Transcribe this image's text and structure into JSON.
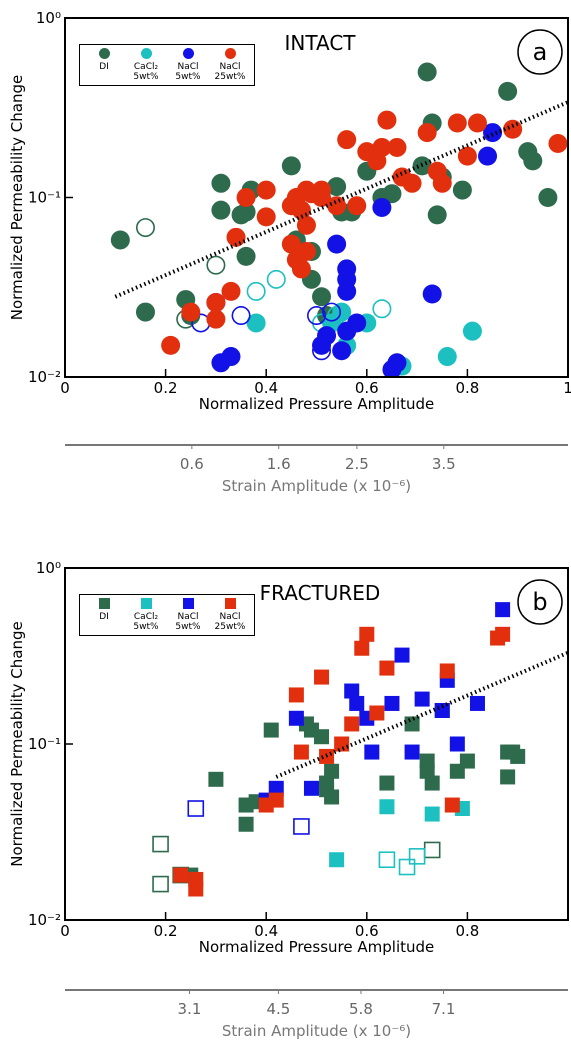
{
  "chart_data": [
    {
      "type": "scatter",
      "title": "INTACT",
      "panel_label": "a",
      "marker": "circle",
      "xlabel": "Normalized Pressure Amplitude",
      "ylabel": "Normalized Permeability Change",
      "x2label": "Strain Amplitude (x 10⁻⁶)",
      "legend": "upper left",
      "log_y": true,
      "xlim": [
        0,
        1
      ],
      "xticks": [
        0,
        0.2,
        0.4,
        0.6,
        0.8,
        1
      ],
      "ylim": [
        0.01,
        1
      ],
      "yticks": [
        {
          "value": 1,
          "label": "10⁰"
        },
        {
          "value": 0.1,
          "label": "10⁻¹"
        },
        {
          "value": 0.01,
          "label": "10⁻²"
        }
      ],
      "x2lim": [
        -0.86,
        4.93
      ],
      "x2ticks": [
        0.6,
        1.6,
        2.5,
        3.5
      ],
      "trend": {
        "x": [
          0.1,
          1
        ],
        "values": [
          0.028,
          0.34
        ]
      },
      "series": [
        {
          "name": "DI",
          "color": "#2e6a4c",
          "x": [
            0.11,
            0.16,
            0.24,
            0.25,
            0.31,
            0.31,
            0.35,
            0.36,
            0.37,
            0.36,
            0.45,
            0.46,
            0.49,
            0.49,
            0.51,
            0.52,
            0.54,
            0.55,
            0.57,
            0.6,
            0.63,
            0.65,
            0.71,
            0.72,
            0.73,
            0.74,
            0.75,
            0.79,
            0.88,
            0.92,
            0.93,
            0.96,
            0.16,
            0.24,
            0.3
          ],
          "values": [
            0.058,
            0.023,
            0.027,
            0.022,
            0.085,
            0.12,
            0.08,
            0.083,
            0.11,
            0.047,
            0.15,
            0.058,
            0.05,
            0.035,
            0.028,
            0.022,
            0.115,
            0.083,
            0.083,
            0.14,
            0.1,
            0.105,
            0.15,
            0.5,
            0.26,
            0.08,
            0.13,
            0.11,
            0.39,
            0.18,
            0.16,
            0.1,
            0.068,
            0.021,
            0.042
          ],
          "filled": [
            true,
            true,
            true,
            true,
            true,
            true,
            true,
            true,
            true,
            true,
            true,
            true,
            true,
            true,
            true,
            true,
            true,
            true,
            true,
            true,
            true,
            true,
            true,
            true,
            true,
            true,
            true,
            true,
            true,
            true,
            true,
            true,
            false,
            false,
            false
          ]
        },
        {
          "name": "CaCl₂ 5wt%",
          "color": "#1cc0c0",
          "x": [
            0.38,
            0.53,
            0.55,
            0.6,
            0.56,
            0.67,
            0.76,
            0.81,
            0.38,
            0.42,
            0.51,
            0.54,
            0.63
          ],
          "values": [
            0.02,
            0.02,
            0.023,
            0.02,
            0.015,
            0.0115,
            0.013,
            0.018,
            0.03,
            0.035,
            0.02,
            0.022,
            0.024
          ],
          "filled": [
            true,
            true,
            true,
            true,
            true,
            true,
            true,
            true,
            false,
            false,
            false,
            false,
            false
          ]
        },
        {
          "name": "NaCl 5wt%",
          "color": "#1212e6",
          "x": [
            0.31,
            0.33,
            0.52,
            0.55,
            0.54,
            0.56,
            0.56,
            0.56,
            0.58,
            0.63,
            0.65,
            0.66,
            0.73,
            0.84,
            0.85,
            0.51,
            0.56,
            0.27,
            0.3,
            0.35,
            0.51,
            0.53,
            0.5
          ],
          "values": [
            0.012,
            0.013,
            0.017,
            0.014,
            0.055,
            0.04,
            0.035,
            0.03,
            0.02,
            0.088,
            0.011,
            0.012,
            0.029,
            0.17,
            0.23,
            0.015,
            0.018,
            0.02,
            0.026,
            0.022,
            0.014,
            0.023,
            0.022
          ],
          "filled": [
            true,
            true,
            true,
            true,
            true,
            true,
            true,
            true,
            true,
            true,
            true,
            true,
            true,
            true,
            true,
            true,
            true,
            false,
            false,
            false,
            false,
            false,
            false
          ]
        },
        {
          "name": "NaCl 25wt%",
          "color": "#e2300e",
          "x": [
            0.21,
            0.25,
            0.3,
            0.3,
            0.33,
            0.34,
            0.36,
            0.4,
            0.4,
            0.45,
            0.46,
            0.47,
            0.48,
            0.49,
            0.51,
            0.46,
            0.47,
            0.48,
            0.51,
            0.54,
            0.56,
            0.58,
            0.6,
            0.62,
            0.63,
            0.64,
            0.66,
            0.67,
            0.69,
            0.72,
            0.74,
            0.75,
            0.78,
            0.8,
            0.82,
            0.89,
            0.98,
            0.48,
            0.45
          ],
          "values": [
            0.015,
            0.023,
            0.026,
            0.021,
            0.03,
            0.06,
            0.1,
            0.078,
            0.11,
            0.09,
            0.1,
            0.085,
            0.11,
            0.105,
            0.11,
            0.045,
            0.04,
            0.05,
            0.1,
            0.09,
            0.21,
            0.09,
            0.18,
            0.16,
            0.19,
            0.27,
            0.19,
            0.13,
            0.12,
            0.23,
            0.14,
            0.12,
            0.26,
            0.17,
            0.26,
            0.24,
            0.2,
            0.07,
            0.055
          ],
          "filled": [
            true,
            true,
            true,
            true,
            true,
            true,
            true,
            true,
            true,
            true,
            true,
            true,
            true,
            true,
            true,
            true,
            true,
            true,
            true,
            true,
            true,
            true,
            true,
            true,
            true,
            true,
            true,
            true,
            true,
            true,
            true,
            true,
            true,
            true,
            true,
            true,
            true,
            true,
            true
          ]
        }
      ]
    },
    {
      "type": "scatter",
      "title": "FRACTURED",
      "panel_label": "b",
      "marker": "square",
      "xlabel": "Normalized Pressure Amplitude",
      "ylabel": "Normalized Permeability Change",
      "x2label": "Strain Amplitude (x 10⁻⁶)",
      "legend": "upper left",
      "log_y": true,
      "xlim": [
        0,
        1
      ],
      "xticks": [
        0,
        0.2,
        0.4,
        0.6,
        0.8
      ],
      "ylim": [
        0.01,
        1
      ],
      "yticks": [
        {
          "value": 1,
          "label": "10⁰"
        },
        {
          "value": 0.1,
          "label": "10⁻¹"
        },
        {
          "value": 0.01,
          "label": "10⁻²"
        }
      ],
      "x2lim": [
        1.14,
        9.06
      ],
      "x2ticks": [
        3.1,
        4.5,
        5.8,
        7.1
      ],
      "trend": {
        "x": [
          0.42,
          1
        ],
        "values": [
          0.065,
          0.33
        ]
      },
      "series": [
        {
          "name": "DI",
          "color": "#2e6a4c",
          "x": [
            0.25,
            0.3,
            0.36,
            0.36,
            0.38,
            0.41,
            0.48,
            0.49,
            0.51,
            0.52,
            0.53,
            0.53,
            0.52,
            0.64,
            0.69,
            0.72,
            0.72,
            0.73,
            0.75,
            0.78,
            0.8,
            0.88,
            0.88,
            0.89,
            0.9,
            0.19,
            0.19,
            0.23,
            0.73
          ],
          "values": [
            0.018,
            0.063,
            0.045,
            0.035,
            0.047,
            0.12,
            0.13,
            0.12,
            0.11,
            0.06,
            0.07,
            0.05,
            0.055,
            0.06,
            0.13,
            0.07,
            0.08,
            0.06,
            0.155,
            0.07,
            0.08,
            0.065,
            0.09,
            0.09,
            0.085,
            0.016,
            0.027,
            0.018,
            0.025
          ],
          "filled": [
            true,
            true,
            true,
            true,
            true,
            true,
            true,
            true,
            true,
            true,
            true,
            true,
            true,
            true,
            true,
            true,
            true,
            true,
            true,
            true,
            true,
            true,
            true,
            true,
            true,
            false,
            false,
            false,
            false
          ]
        },
        {
          "name": "CaCl₂ 5wt%",
          "color": "#1cc0c0",
          "x": [
            0.54,
            0.64,
            0.73,
            0.79,
            0.64,
            0.68,
            0.7
          ],
          "values": [
            0.022,
            0.044,
            0.04,
            0.043,
            0.022,
            0.02,
            0.023
          ],
          "filled": [
            true,
            true,
            true,
            true,
            false,
            false,
            false
          ]
        },
        {
          "name": "NaCl 5wt%",
          "color": "#1212e6",
          "x": [
            0.4,
            0.42,
            0.46,
            0.49,
            0.57,
            0.58,
            0.6,
            0.61,
            0.65,
            0.67,
            0.69,
            0.71,
            0.75,
            0.76,
            0.78,
            0.82,
            0.87,
            0.26,
            0.47
          ],
          "values": [
            0.048,
            0.056,
            0.14,
            0.056,
            0.2,
            0.17,
            0.14,
            0.09,
            0.17,
            0.32,
            0.09,
            0.18,
            0.155,
            0.23,
            0.1,
            0.17,
            0.58,
            0.043,
            0.034
          ],
          "filled": [
            true,
            true,
            true,
            true,
            true,
            true,
            true,
            true,
            true,
            true,
            true,
            true,
            true,
            true,
            true,
            true,
            true,
            false,
            false
          ]
        },
        {
          "name": "NaCl 25wt%",
          "color": "#e2300e",
          "x": [
            0.23,
            0.26,
            0.26,
            0.4,
            0.42,
            0.46,
            0.47,
            0.51,
            0.52,
            0.55,
            0.57,
            0.59,
            0.6,
            0.62,
            0.64,
            0.76,
            0.77,
            0.86,
            0.87
          ],
          "values": [
            0.018,
            0.017,
            0.015,
            0.045,
            0.048,
            0.19,
            0.09,
            0.24,
            0.085,
            0.1,
            0.13,
            0.35,
            0.42,
            0.15,
            0.27,
            0.26,
            0.045,
            0.4,
            0.42
          ],
          "filled": [
            true,
            true,
            true,
            true,
            true,
            true,
            true,
            true,
            true,
            true,
            true,
            true,
            true,
            true,
            true,
            true,
            true,
            true,
            true
          ]
        }
      ]
    }
  ]
}
